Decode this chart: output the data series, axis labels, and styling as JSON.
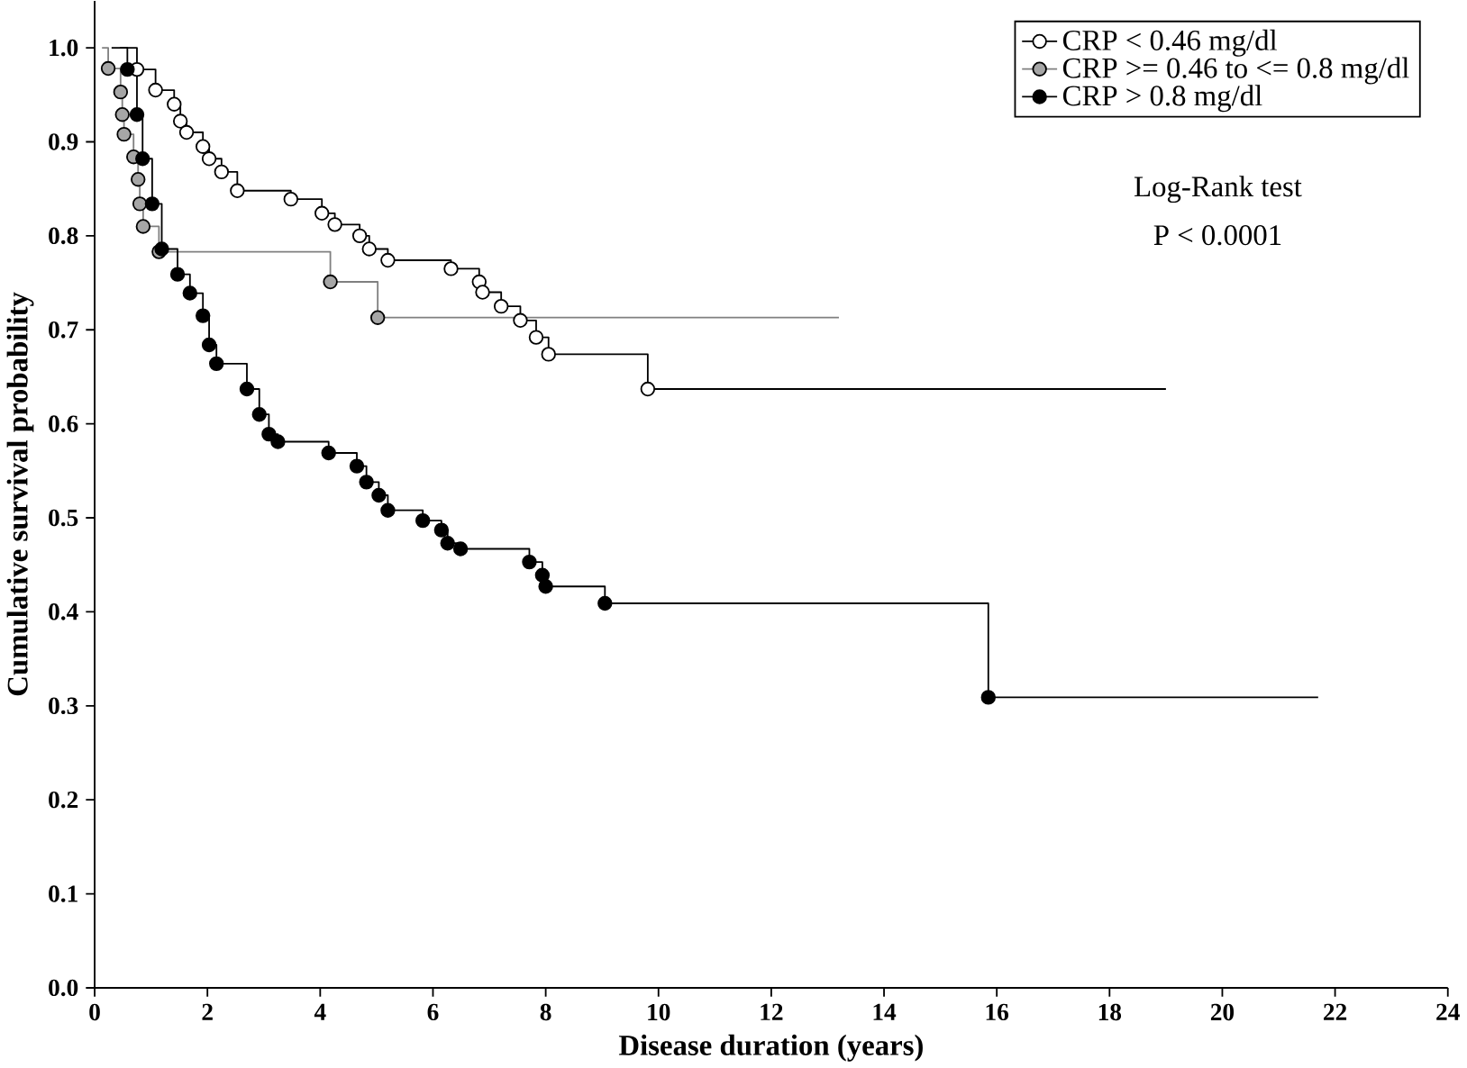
{
  "chart_data": {
    "type": "step",
    "xlabel": "Disease duration (years)",
    "ylabel": "Cumulative survival probability",
    "xlim": [
      0,
      24
    ],
    "ylim": [
      0,
      1.05
    ],
    "xticks": [
      0,
      2,
      4,
      6,
      8,
      10,
      12,
      14,
      16,
      18,
      20,
      22,
      24
    ],
    "yticks": [
      {
        "value": 0,
        "label": "0.0"
      },
      {
        "value": 0.1,
        "label": "0.1"
      },
      {
        "value": 0.2,
        "label": "0.2"
      },
      {
        "value": 0.3,
        "label": "0.3"
      },
      {
        "value": 0.4,
        "label": "0.4"
      },
      {
        "value": 0.5,
        "label": "0.5"
      },
      {
        "value": 0.6,
        "label": "0.6"
      },
      {
        "value": 0.7,
        "label": "0.7"
      },
      {
        "value": 0.8,
        "label": "0.8"
      },
      {
        "value": 0.9,
        "label": "0.9"
      },
      {
        "value": 1.0,
        "label": "1.0"
      }
    ],
    "legend": "top right",
    "marker": "circle",
    "grid": false,
    "annotations": [
      "Log-Rank test",
      "P < 0.0001"
    ],
    "series": [
      {
        "name": "CRP < 0.46 mg/dl",
        "color": "#ffffff",
        "x": [
          0.3,
          0.75,
          1.08,
          1.41,
          1.52,
          1.63,
          1.92,
          2.03,
          2.25,
          2.53,
          3.48,
          4.03,
          4.26,
          4.7,
          4.87,
          5.2,
          6.32,
          6.82,
          6.88,
          7.21,
          7.55,
          7.83,
          8.05,
          9.81,
          19.0
        ],
        "values": [
          1.0,
          0.977,
          0.955,
          0.94,
          0.922,
          0.91,
          0.895,
          0.882,
          0.868,
          0.848,
          0.839,
          0.824,
          0.812,
          0.8,
          0.786,
          0.774,
          0.765,
          0.751,
          0.74,
          0.725,
          0.71,
          0.692,
          0.674,
          0.637,
          0.637
        ]
      },
      {
        "name": "CRP >= 0.46 to <= 0.8 mg/dl",
        "color": "#a6a6a6",
        "x": [
          0.13,
          0.24,
          0.46,
          0.49,
          0.52,
          0.69,
          0.77,
          0.8,
          0.86,
          1.14,
          4.18,
          5.02,
          13.2
        ],
        "values": [
          1.0,
          0.978,
          0.953,
          0.929,
          0.908,
          0.884,
          0.86,
          0.834,
          0.81,
          0.783,
          0.751,
          0.713,
          0.713
        ]
      },
      {
        "name": "CRP > 0.8 mg/dl",
        "color": "#000000",
        "x": [
          0.45,
          0.58,
          0.75,
          0.85,
          1.02,
          1.19,
          1.47,
          1.69,
          1.92,
          2.03,
          2.16,
          2.7,
          2.92,
          3.09,
          3.25,
          4.15,
          4.65,
          4.82,
          5.04,
          5.2,
          5.82,
          6.15,
          6.26,
          6.49,
          7.71,
          7.94,
          8.0,
          9.05,
          15.85,
          21.7
        ],
        "values": [
          1.0,
          0.977,
          0.929,
          0.882,
          0.834,
          0.786,
          0.759,
          0.739,
          0.715,
          0.684,
          0.664,
          0.637,
          0.61,
          0.589,
          0.581,
          0.569,
          0.555,
          0.538,
          0.524,
          0.508,
          0.497,
          0.487,
          0.473,
          0.467,
          0.453,
          0.439,
          0.427,
          0.409,
          0.309,
          0.309
        ]
      }
    ]
  }
}
